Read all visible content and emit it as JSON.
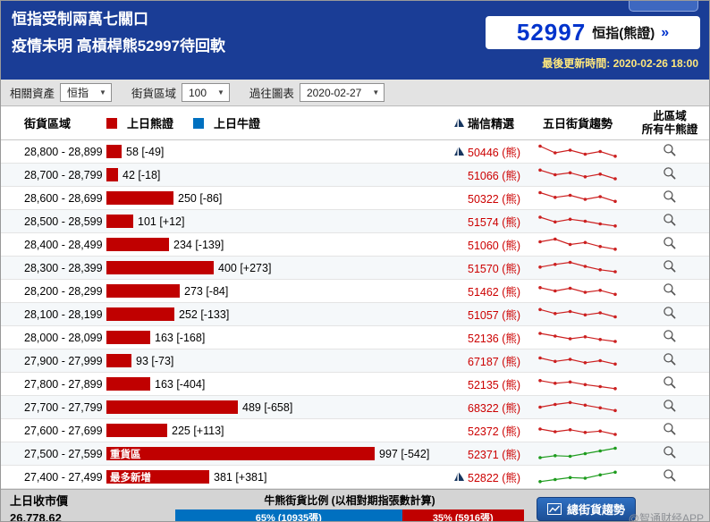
{
  "header": {
    "title_line1": "恒指受制兩萬七關口",
    "title_line2": "疫情未明 高槓桿熊52997待回軟",
    "index_number": "52997",
    "index_label": "恒指(熊證)",
    "more_arrow": "»",
    "update_time": "最後更新時間: 2020-02-26 18:00"
  },
  "filters": {
    "asset_label": "相關資產",
    "asset_value": "恒指",
    "zone_label": "街貨區域",
    "zone_value": "100",
    "chart_label": "過往圖表",
    "chart_value": "2020-02-27"
  },
  "table": {
    "col_zone": "街貨區域",
    "legend_bear": "上日熊證",
    "legend_bull": "上日牛證",
    "col_cs": "瑞信精選",
    "col_trend": "五日街貨趨勢",
    "col_all_line1": "此區域",
    "col_all_line2": "所有牛熊證",
    "rows": [
      {
        "range": "28,800 - 28,899",
        "value": 58,
        "label": "58 [-49]",
        "tag": "",
        "cs": "50446",
        "cs_suffix": "(熊)",
        "cs_icon": true,
        "spark": [
          0.9,
          0.4,
          0.6,
          0.3,
          0.5,
          0.15
        ],
        "spark_color": "red"
      },
      {
        "range": "28,700 - 28,799",
        "value": 42,
        "label": "42 [-18]",
        "tag": "",
        "cs": "51066",
        "cs_suffix": "(熊)",
        "cs_icon": false,
        "spark": [
          0.85,
          0.5,
          0.65,
          0.35,
          0.55,
          0.2
        ],
        "spark_color": "red"
      },
      {
        "range": "28,600 - 28,699",
        "value": 250,
        "label": "250 [-86]",
        "tag": "",
        "cs": "50322",
        "cs_suffix": "(熊)",
        "cs_icon": false,
        "spark": [
          0.9,
          0.55,
          0.7,
          0.4,
          0.6,
          0.25
        ],
        "spark_color": "red"
      },
      {
        "range": "28,500 - 28,599",
        "value": 101,
        "label": "101 [+12]",
        "tag": "",
        "cs": "51574",
        "cs_suffix": "(熊)",
        "cs_icon": false,
        "spark": [
          0.8,
          0.45,
          0.65,
          0.5,
          0.3,
          0.15
        ],
        "spark_color": "red"
      },
      {
        "range": "28,400 - 28,499",
        "value": 234,
        "label": "234 [-139]",
        "tag": "",
        "cs": "51060",
        "cs_suffix": "(熊)",
        "cs_icon": false,
        "spark": [
          0.7,
          0.9,
          0.5,
          0.65,
          0.35,
          0.15
        ],
        "spark_color": "red"
      },
      {
        "range": "28,300 - 28,399",
        "value": 400,
        "label": "400 [+273]",
        "tag": "",
        "cs": "51570",
        "cs_suffix": "(熊)",
        "cs_icon": false,
        "spark": [
          0.55,
          0.75,
          0.9,
          0.6,
          0.35,
          0.2
        ],
        "spark_color": "red"
      },
      {
        "range": "28,200 - 28,299",
        "value": 273,
        "label": "273 [-84]",
        "tag": "",
        "cs": "51462",
        "cs_suffix": "(熊)",
        "cs_icon": false,
        "spark": [
          0.75,
          0.5,
          0.7,
          0.4,
          0.55,
          0.25
        ],
        "spark_color": "red"
      },
      {
        "range": "28,100 - 28,199",
        "value": 252,
        "label": "252 [-133]",
        "tag": "",
        "cs": "51057",
        "cs_suffix": "(熊)",
        "cs_icon": false,
        "spark": [
          0.85,
          0.55,
          0.7,
          0.45,
          0.6,
          0.3
        ],
        "spark_color": "red"
      },
      {
        "range": "28,000 - 28,099",
        "value": 163,
        "label": "163 [-168]",
        "tag": "",
        "cs": "52136",
        "cs_suffix": "(熊)",
        "cs_icon": false,
        "spark": [
          0.8,
          0.6,
          0.4,
          0.55,
          0.35,
          0.2
        ],
        "spark_color": "red"
      },
      {
        "range": "27,900 - 27,999",
        "value": 93,
        "label": "93 [-73]",
        "tag": "",
        "cs": "67187",
        "cs_suffix": "(熊)",
        "cs_icon": false,
        "spark": [
          0.7,
          0.45,
          0.6,
          0.35,
          0.5,
          0.25
        ],
        "spark_color": "red"
      },
      {
        "range": "27,800 - 27,899",
        "value": 163,
        "label": "163 [-404]",
        "tag": "",
        "cs": "52135",
        "cs_suffix": "(熊)",
        "cs_icon": false,
        "spark": [
          0.75,
          0.55,
          0.65,
          0.45,
          0.3,
          0.15
        ],
        "spark_color": "red"
      },
      {
        "range": "27,700 - 27,799",
        "value": 489,
        "label": "489 [-658]",
        "tag": "",
        "cs": "68322",
        "cs_suffix": "(熊)",
        "cs_icon": false,
        "spark": [
          0.5,
          0.7,
          0.85,
          0.65,
          0.45,
          0.25
        ],
        "spark_color": "red"
      },
      {
        "range": "27,600 - 27,699",
        "value": 225,
        "label": "225 [+113]",
        "tag": "",
        "cs": "52372",
        "cs_suffix": "(熊)",
        "cs_icon": false,
        "spark": [
          0.6,
          0.4,
          0.55,
          0.35,
          0.45,
          0.2
        ],
        "spark_color": "red"
      },
      {
        "range": "27,500 - 27,599",
        "value": 997,
        "label": "997 [-542]",
        "tag": "重貨區",
        "cs": "52371",
        "cs_suffix": "(熊)",
        "cs_icon": false,
        "spark": [
          0.2,
          0.35,
          0.3,
          0.5,
          0.7,
          0.9
        ],
        "spark_color": "green"
      },
      {
        "range": "27,400 - 27,499",
        "value": 381,
        "label": "381 [+381]",
        "tag": "最多新增",
        "cs": "52822",
        "cs_suffix": "(熊)",
        "cs_icon": true,
        "spark": [
          0.15,
          0.3,
          0.45,
          0.4,
          0.65,
          0.85
        ],
        "spark_color": "green"
      }
    ]
  },
  "footer": {
    "close_label": "上日收市價",
    "close_value": "26,778.62",
    "ratio_title": "牛熊街貨比例 (以相對期指張數計算)",
    "bull_text": "65% (10935張)",
    "bull_pct": 65,
    "bear_text": "35% (5916張)",
    "bear_pct": 35,
    "trend_button": "總街貨趨勢",
    "watermark": "@智通财经APP"
  },
  "colors": {
    "bear_red": "#C00000",
    "bull_blue": "#0070C0",
    "cs_text_red": "#CC0000",
    "spark_red": "#CC2020",
    "spark_green": "#1E9C1E",
    "header_blue": "#1A3D96",
    "index_number_blue": "#0033CC",
    "update_time_yellow": "#FFE87C"
  },
  "chart_data": {
    "type": "bar",
    "orientation": "horizontal",
    "title": "街貨區域",
    "legend": [
      "上日熊證",
      "上日牛證"
    ],
    "categories": [
      "28,800 - 28,899",
      "28,700 - 28,799",
      "28,600 - 28,699",
      "28,500 - 28,599",
      "28,400 - 28,499",
      "28,300 - 28,399",
      "28,200 - 28,299",
      "28,100 - 28,199",
      "28,000 - 28,099",
      "27,900 - 27,999",
      "27,800 - 27,899",
      "27,700 - 27,799",
      "27,600 - 27,699",
      "27,500 - 27,599",
      "27,400 - 27,499"
    ],
    "series": [
      {
        "name": "上日熊證",
        "values": [
          58,
          42,
          250,
          101,
          234,
          400,
          273,
          252,
          163,
          93,
          163,
          489,
          225,
          997,
          381
        ]
      }
    ],
    "changes": [
      -49,
      -18,
      -86,
      12,
      -139,
      273,
      -84,
      -133,
      -168,
      -73,
      -404,
      -658,
      113,
      -542,
      381
    ],
    "annotations": [
      {
        "category": "27,500 - 27,599",
        "label": "重貨區"
      },
      {
        "category": "27,400 - 27,499",
        "label": "最多新增"
      }
    ],
    "bar_color": "#C00000"
  }
}
